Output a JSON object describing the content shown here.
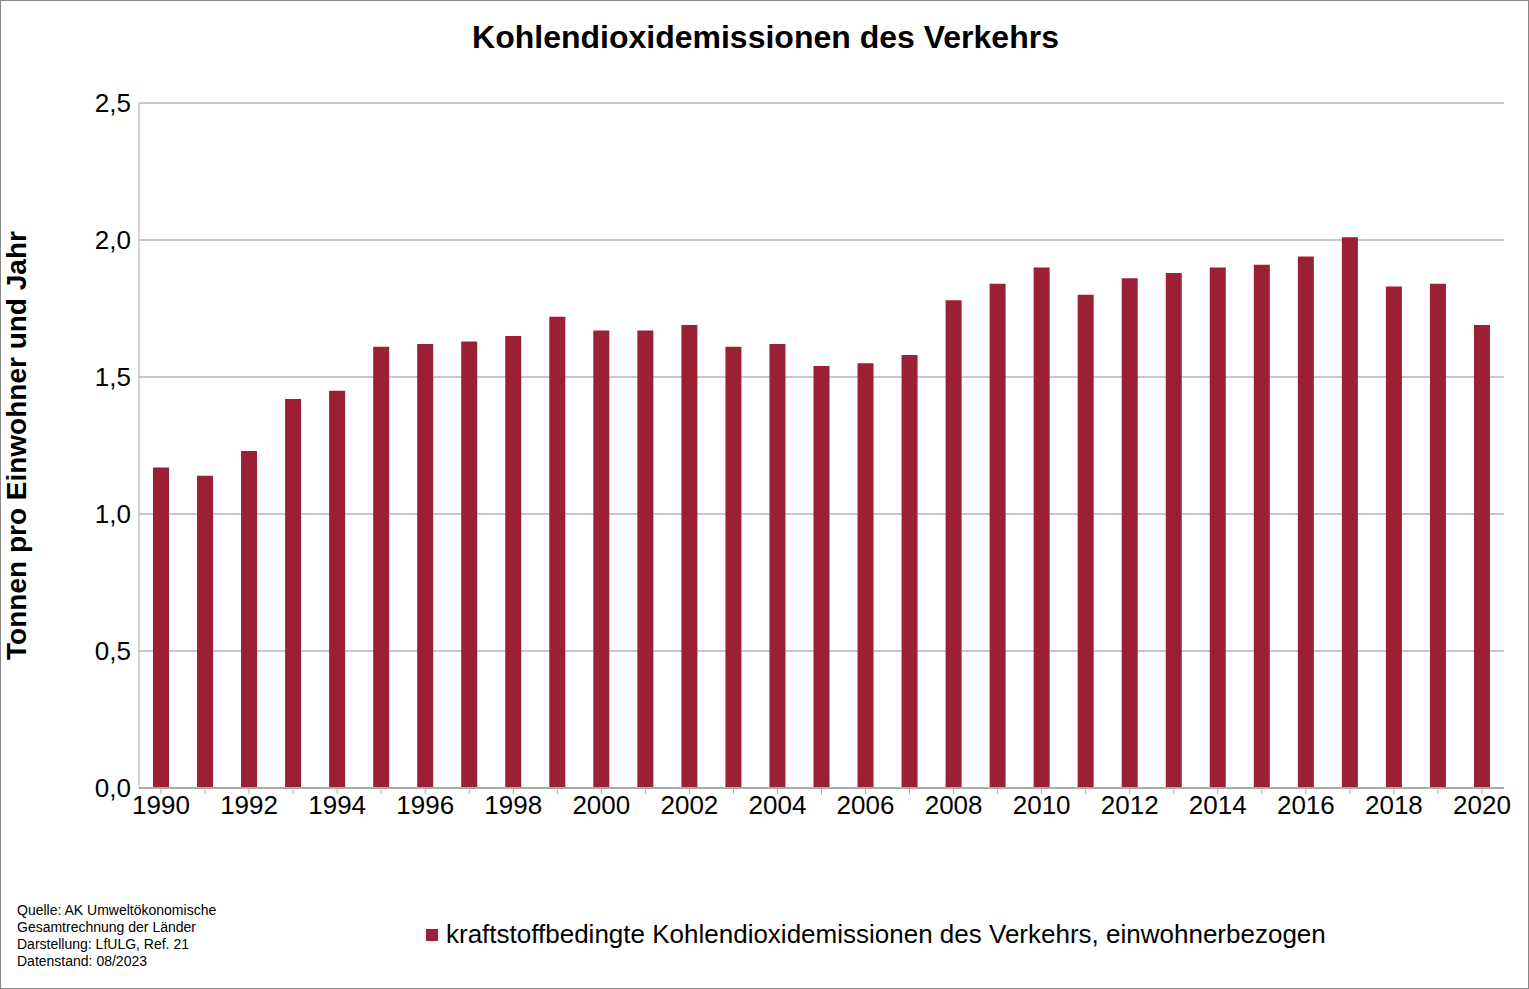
{
  "chart_data": {
    "type": "bar",
    "title": "Kohlendioxidemissionen des Verkehrs",
    "y_label": "Tonnen pro Einwohner und Jahr",
    "categories": [
      "1990",
      null,
      "1992",
      null,
      "1994",
      null,
      "1996",
      null,
      "1998",
      null,
      "2000",
      null,
      "2002",
      null,
      "2004",
      null,
      "2006",
      null,
      "2008",
      null,
      "2010",
      null,
      "2012",
      null,
      "2014",
      null,
      "2016",
      null,
      "2018",
      null,
      "2020"
    ],
    "series": [
      {
        "name": "kraftstoffbedingte Kohlendioxidemissionen des Verkehrs, einwohnerbezogen",
        "color": "#9b1f35",
        "values": [
          1.17,
          1.14,
          1.23,
          1.42,
          1.45,
          1.61,
          1.62,
          1.63,
          1.65,
          1.72,
          1.67,
          1.67,
          1.69,
          1.61,
          1.62,
          1.54,
          1.55,
          1.58,
          1.78,
          1.84,
          1.9,
          1.8,
          1.86,
          1.88,
          1.9,
          1.91,
          1.94,
          2.01,
          1.83,
          1.84,
          1.69
        ]
      }
    ],
    "ylim": [
      0,
      2.5
    ],
    "yticks": [
      {
        "value": 0,
        "label": "0,0"
      },
      {
        "value": 0.5,
        "label": "0,5"
      },
      {
        "value": 1,
        "label": "1,0"
      },
      {
        "value": 1.5,
        "label": "1,5"
      },
      {
        "value": 2,
        "label": "2,0"
      },
      {
        "value": 2.5,
        "label": "2,5"
      }
    ],
    "grid": true,
    "legend": "bottom",
    "notes": [
      "Quelle: AK Umweltökonomische",
      "Gesamtrechnung der Länder",
      "Darstellung: LfULG, Ref. 21",
      "Datenstand: 08/2023"
    ]
  }
}
